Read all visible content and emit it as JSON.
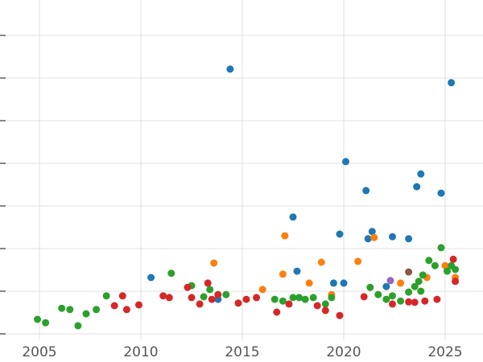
{
  "chart_data": {
    "type": "scatter",
    "title": "",
    "xlabel": "",
    "ylabel": "",
    "grid": true,
    "legend": "none",
    "background_color": "#ffffff",
    "gridline_color": "#e0e0e0",
    "tick_color": "#444444",
    "tick_label_color": "#555555",
    "x_axis": {
      "ticks": [
        2005,
        2010,
        2015,
        2020,
        2025
      ],
      "tick_labels": [
        "2005",
        "2010",
        "2015",
        "2020",
        "2025"
      ],
      "range": [
        2003.1,
        2026.9
      ]
    },
    "y_axis": {
      "tick_labels_visible": false,
      "gridline_values": [
        0,
        1,
        2,
        3,
        4,
        5,
        6,
        7
      ],
      "range": [
        0,
        7.85
      ]
    },
    "series": [
      {
        "name": "series-blue",
        "color": "#1f77b4",
        "points": [
          [
            2014.4,
            6.21
          ],
          [
            2025.3,
            5.89
          ],
          [
            2020.1,
            4.04
          ],
          [
            2023.8,
            3.75
          ],
          [
            2023.6,
            3.45
          ],
          [
            2021.1,
            3.36
          ],
          [
            2024.8,
            3.3
          ],
          [
            2017.5,
            2.74
          ],
          [
            2021.4,
            2.4
          ],
          [
            2019.8,
            2.34
          ],
          [
            2022.4,
            2.28
          ],
          [
            2021.2,
            2.23
          ],
          [
            2023.2,
            2.23
          ],
          [
            2017.7,
            1.47
          ],
          [
            2010.5,
            1.32
          ],
          [
            2019.5,
            1.19
          ],
          [
            2020.0,
            1.19
          ],
          [
            2022.1,
            1.11
          ],
          [
            2013.8,
            0.81
          ]
        ]
      },
      {
        "name": "series-orange",
        "color": "#ff7f0e",
        "points": [
          [
            2013.6,
            1.66
          ],
          [
            2017.1,
            2.3
          ],
          [
            2017.0,
            1.4
          ],
          [
            2018.9,
            1.68
          ],
          [
            2020.7,
            1.7
          ],
          [
            2021.5,
            2.26
          ],
          [
            2019.4,
            0.92
          ],
          [
            2018.3,
            1.19
          ],
          [
            2022.8,
            1.19
          ],
          [
            2024.1,
            1.32
          ],
          [
            2025.0,
            1.6
          ],
          [
            2025.5,
            1.32
          ],
          [
            2016.0,
            1.04
          ]
        ]
      },
      {
        "name": "series-green",
        "color": "#2ca02c",
        "points": [
          [
            2004.9,
            0.34
          ],
          [
            2005.3,
            0.26
          ],
          [
            2006.1,
            0.6
          ],
          [
            2006.5,
            0.57
          ],
          [
            2006.9,
            0.19
          ],
          [
            2007.3,
            0.47
          ],
          [
            2007.8,
            0.57
          ],
          [
            2008.3,
            0.89
          ],
          [
            2011.5,
            1.42
          ],
          [
            2012.5,
            1.13
          ],
          [
            2013.1,
            0.87
          ],
          [
            2013.4,
            1.04
          ],
          [
            2014.2,
            0.92
          ],
          [
            2016.6,
            0.81
          ],
          [
            2017.0,
            0.77
          ],
          [
            2017.5,
            0.85
          ],
          [
            2017.8,
            0.85
          ],
          [
            2018.1,
            0.81
          ],
          [
            2018.5,
            0.85
          ],
          [
            2019.1,
            0.7
          ],
          [
            2019.4,
            0.85
          ],
          [
            2021.3,
            1.09
          ],
          [
            2021.7,
            0.92
          ],
          [
            2022.1,
            0.81
          ],
          [
            2022.4,
            0.89
          ],
          [
            2022.8,
            0.77
          ],
          [
            2023.2,
            0.98
          ],
          [
            2023.5,
            1.11
          ],
          [
            2023.7,
            1.23
          ],
          [
            2023.8,
            1.0
          ],
          [
            2023.9,
            1.38
          ],
          [
            2024.2,
            1.72
          ],
          [
            2024.5,
            1.6
          ],
          [
            2024.8,
            2.02
          ],
          [
            2025.1,
            1.47
          ],
          [
            2025.3,
            1.6
          ],
          [
            2025.5,
            1.51
          ]
        ]
      },
      {
        "name": "series-red",
        "color": "#d62728",
        "points": [
          [
            2008.7,
            0.66
          ],
          [
            2009.1,
            0.89
          ],
          [
            2009.3,
            0.57
          ],
          [
            2009.9,
            0.68
          ],
          [
            2011.1,
            0.89
          ],
          [
            2011.4,
            0.85
          ],
          [
            2012.3,
            1.09
          ],
          [
            2012.5,
            0.85
          ],
          [
            2012.9,
            0.7
          ],
          [
            2013.3,
            1.19
          ],
          [
            2013.5,
            0.81
          ],
          [
            2013.8,
            0.92
          ],
          [
            2014.8,
            0.72
          ],
          [
            2015.2,
            0.81
          ],
          [
            2015.7,
            0.85
          ],
          [
            2016.7,
            0.51
          ],
          [
            2017.3,
            0.7
          ],
          [
            2018.7,
            0.66
          ],
          [
            2019.1,
            0.55
          ],
          [
            2019.8,
            0.43
          ],
          [
            2021.0,
            0.87
          ],
          [
            2022.4,
            0.7
          ],
          [
            2023.2,
            0.75
          ],
          [
            2023.5,
            0.74
          ],
          [
            2024.0,
            0.77
          ],
          [
            2024.6,
            0.81
          ],
          [
            2025.5,
            1.23
          ],
          [
            2025.4,
            1.75
          ]
        ]
      },
      {
        "name": "series-purple",
        "color": "#9467bd",
        "points": [
          [
            2022.3,
            1.25
          ]
        ]
      },
      {
        "name": "series-brown",
        "color": "#8c564b",
        "points": [
          [
            2023.2,
            1.45
          ]
        ]
      }
    ]
  }
}
